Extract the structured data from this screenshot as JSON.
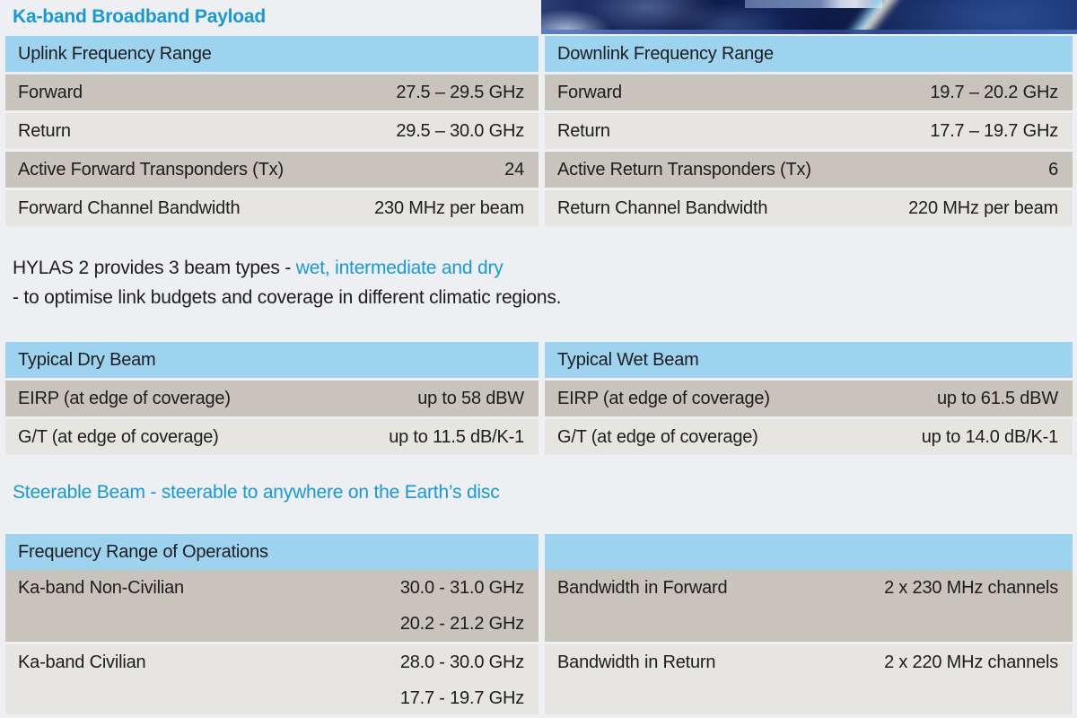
{
  "page": {
    "title": "Ka-band Broadband Payload"
  },
  "hero_photo": {
    "description": "earth-from-space-photo"
  },
  "tables": {
    "uplink": {
      "header": "Uplink Frequency Range",
      "rows": [
        {
          "label": "Forward",
          "value": "27.5 – 29.5 GHz"
        },
        {
          "label": "Return",
          "value": "29.5 – 30.0 GHz"
        },
        {
          "label": "Active Forward Transponders (Tx)",
          "value": "24"
        },
        {
          "label": "Forward Channel Bandwidth",
          "value": "230 MHz per beam"
        }
      ]
    },
    "downlink": {
      "header": "Downlink Frequency Range",
      "rows": [
        {
          "label": "Forward",
          "value": "19.7 – 20.2 GHz"
        },
        {
          "label": "Return",
          "value": "17.7 – 19.7 GHz"
        },
        {
          "label": "Active Return Transponders (Tx)",
          "value": "6"
        },
        {
          "label": "Return Channel Bandwidth",
          "value": "220 MHz per beam"
        }
      ]
    },
    "dry_beam": {
      "header": "Typical Dry Beam",
      "rows": [
        {
          "label": "EIRP (at edge of coverage)",
          "value": "up to 58 dBW"
        },
        {
          "label": "G/T (at edge of coverage)",
          "value": "up to 11.5 dB/K-1"
        }
      ]
    },
    "wet_beam": {
      "header": "Typical Wet Beam",
      "rows": [
        {
          "label": "EIRP (at edge of coverage)",
          "value": "up to 61.5 dBW"
        },
        {
          "label": "G/T (at edge of coverage)",
          "value": "up to 14.0 dB/K-1"
        }
      ]
    },
    "operations": {
      "header": "Frequency Range of Operations",
      "left_rows": [
        {
          "label": "Ka-band Non-Civilian",
          "values": [
            "30.0 - 31.0 GHz",
            "20.2 - 21.2 GHz"
          ]
        },
        {
          "label": "Ka-band Civilian",
          "values": [
            "28.0 - 30.0 GHz",
            "17.7 - 19.7 GHz"
          ]
        }
      ],
      "right_rows": [
        {
          "label": "Bandwidth in Forward",
          "value": "2 x 230 MHz channels"
        },
        {
          "label": "Bandwidth in Return",
          "value": "2 x 220 MHz channels"
        }
      ]
    }
  },
  "paragraph": {
    "line1_black": "HYLAS 2 provides 3 beam types - ",
    "line1_cyan": "wet, intermediate and dry",
    "line2": "- to optimise link budgets and coverage in different climatic regions."
  },
  "steerable_note": "Steerable Beam - steerable to anywhere on the Earth’s disc",
  "colors": {
    "accent_cyan": "#1699d6",
    "header_blue": "#9ed3f0",
    "row_dark": "#c8c4bb",
    "row_light": "#e7e5e1",
    "text_dark": "#1d1c1e",
    "page_bg": "#edeff3"
  }
}
